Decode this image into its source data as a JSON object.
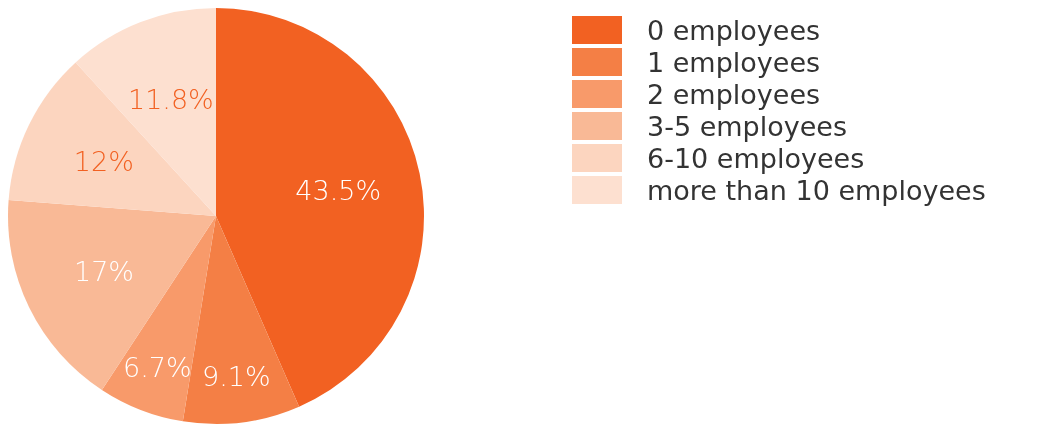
{
  "chart_data": {
    "type": "pie",
    "categories": [
      "0 employees",
      "1 employees",
      "2 employees",
      "3-5 employees",
      "6-10 employees",
      "more than 10 employees"
    ],
    "values": [
      43.5,
      9.1,
      6.7,
      17,
      12,
      11.8
    ],
    "value_labels": [
      "43.5%",
      "9.1%",
      "6.7%",
      "17%",
      "12%",
      "11.8%"
    ],
    "colors": [
      "#f26122",
      "#f47f45",
      "#f89a6a",
      "#f9b996",
      "#fcd5bf",
      "#fde0d0"
    ],
    "legend": "right"
  }
}
